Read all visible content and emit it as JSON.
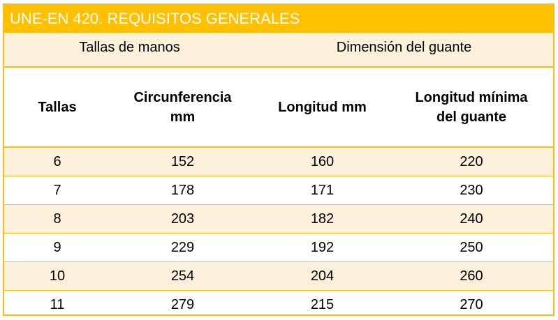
{
  "title": "UNE-EN 420. REQUISITOS GENERALES",
  "groups": [
    "Tallas de manos",
    "Dimensión del guante"
  ],
  "columns": [
    "Tallas",
    "Circunferencia\nmm",
    "Longitud mm",
    "Longitud mínima\ndel guante"
  ],
  "rows": [
    [
      "6",
      "152",
      "160",
      "220"
    ],
    [
      "7",
      "178",
      "171",
      "230"
    ],
    [
      "8",
      "203",
      "182",
      "240"
    ],
    [
      "9",
      "229",
      "192",
      "250"
    ],
    [
      "10",
      "254",
      "204",
      "260"
    ],
    [
      "11",
      "279",
      "215",
      "270"
    ]
  ],
  "colors": {
    "accent": "#ffc000",
    "border": "#f5be1a",
    "stripe": "#fdf1dc"
  }
}
